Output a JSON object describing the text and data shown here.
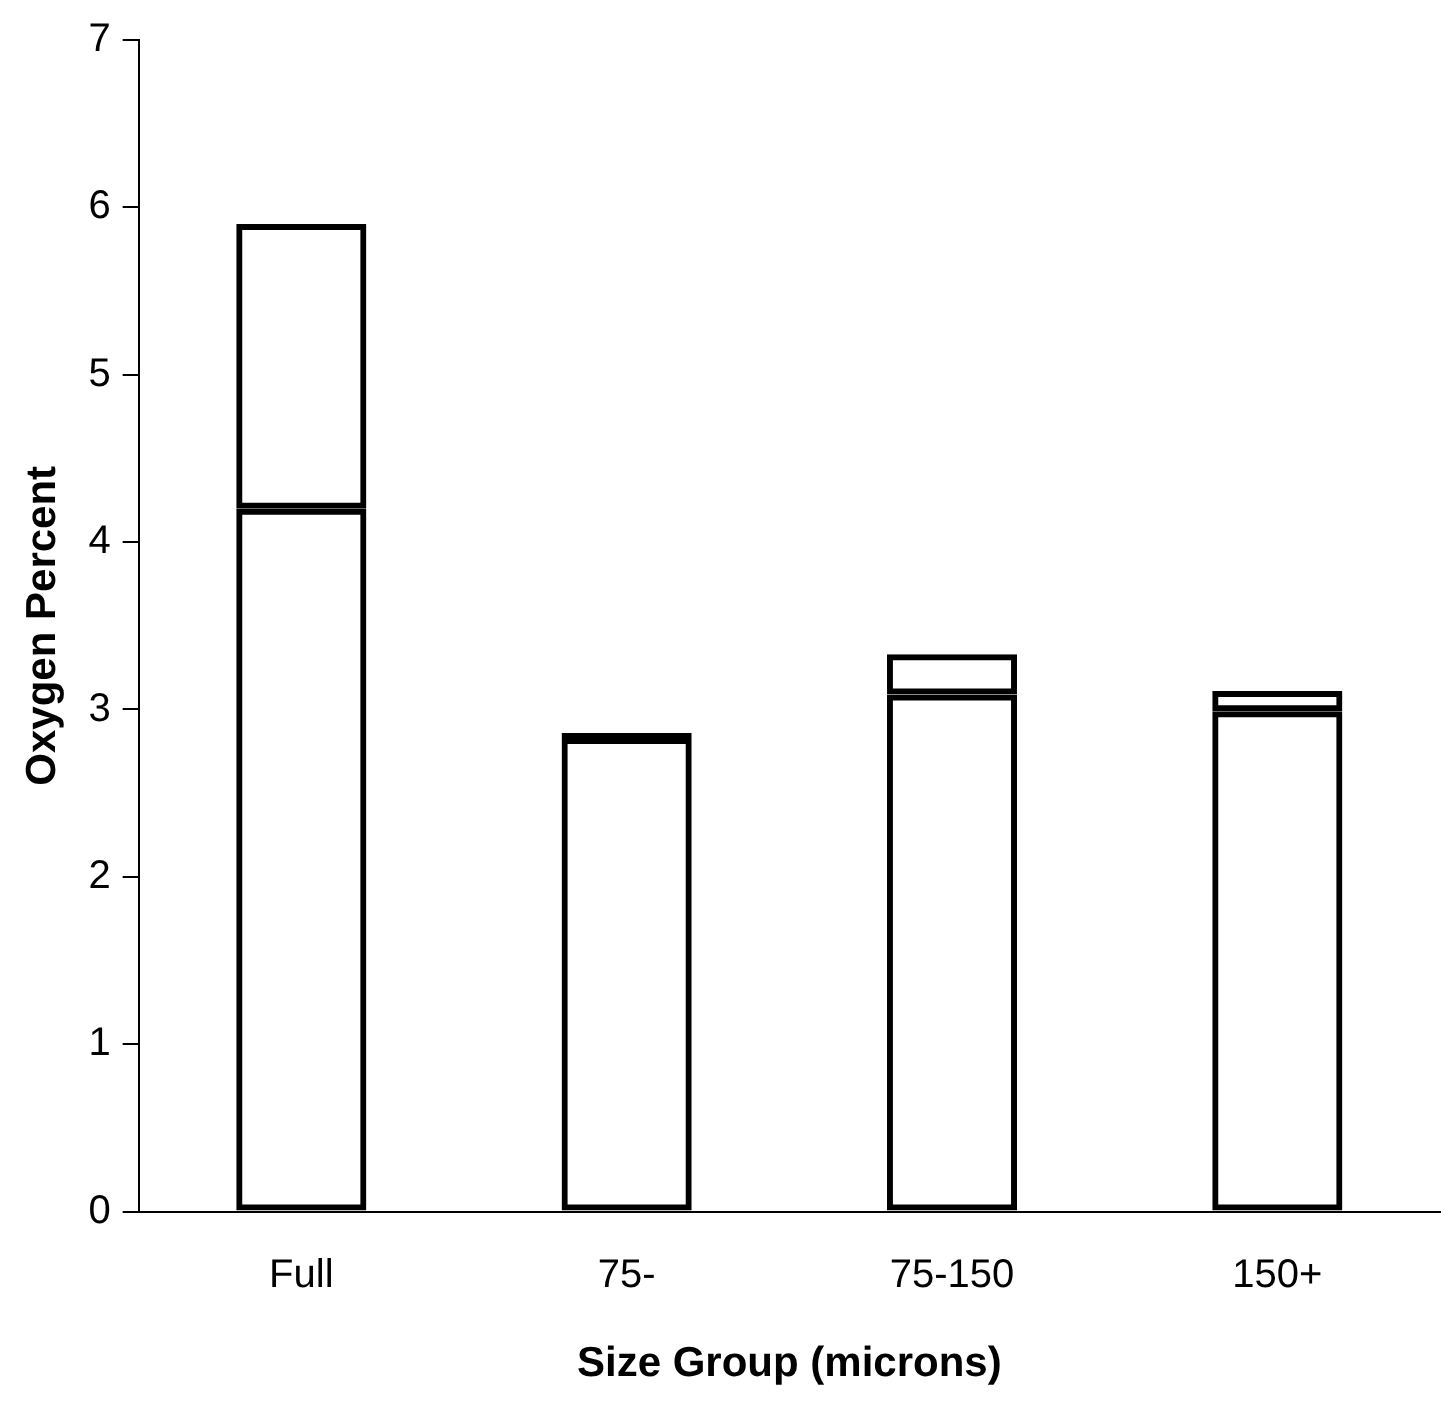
{
  "chart_data": {
    "type": "bar",
    "stacked": true,
    "xlabel": "Size Group (microns)",
    "ylabel": "Oxygen Percent",
    "categories": [
      "Full",
      "75-",
      "75-150",
      "150+"
    ],
    "series": [
      {
        "color": "#000000",
        "values": [
          4.2,
          2.83,
          3.09,
          2.99
        ]
      },
      {
        "color": "#000000",
        "values": [
          1.7,
          0.03,
          0.24,
          0.12
        ]
      }
    ],
    "ylim": [
      0,
      7
    ],
    "yticks": [
      0,
      1,
      2,
      3,
      4,
      5,
      6,
      7
    ],
    "grid": false,
    "legend": false
  }
}
